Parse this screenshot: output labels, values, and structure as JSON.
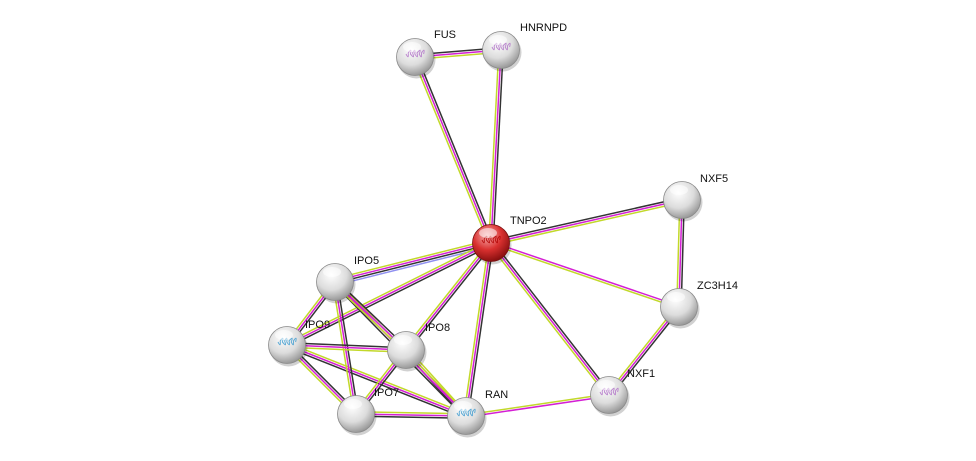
{
  "evidence_colors": {
    "textmining": "#c2d82a",
    "experiments": "#d41fd4",
    "coexpression": "#333333",
    "homology": "#8f8ff0"
  },
  "node_colors": {
    "query": "#d9302f",
    "default": "#d8d8d8"
  },
  "nodes": [
    {
      "id": "FUS",
      "label": "FUS",
      "query": false,
      "structure": true
    },
    {
      "id": "HNRNPD",
      "label": "HNRNPD",
      "query": false,
      "structure": true
    },
    {
      "id": "TNPO2",
      "label": "TNPO2",
      "query": true,
      "structure": true
    },
    {
      "id": "NXF5",
      "label": "NXF5",
      "query": false,
      "structure": false
    },
    {
      "id": "ZC3H14",
      "label": "ZC3H14",
      "query": false,
      "structure": false
    },
    {
      "id": "NXF1",
      "label": "NXF1",
      "query": false,
      "structure": true
    },
    {
      "id": "RAN",
      "label": "RAN",
      "query": false,
      "structure": true
    },
    {
      "id": "IPO7",
      "label": "IPO7",
      "query": false,
      "structure": false
    },
    {
      "id": "IPO8",
      "label": "IPO8",
      "query": false,
      "structure": false
    },
    {
      "id": "IPO9",
      "label": "IPO9",
      "query": false,
      "structure": true
    },
    {
      "id": "IPO5",
      "label": "IPO5",
      "query": false,
      "structure": false
    }
  ],
  "edges": [
    {
      "a": "FUS",
      "b": "HNRNPD",
      "evidence": [
        "coexpression",
        "experiments",
        "textmining"
      ]
    },
    {
      "a": "FUS",
      "b": "TNPO2",
      "evidence": [
        "coexpression",
        "experiments",
        "textmining"
      ]
    },
    {
      "a": "HNRNPD",
      "b": "TNPO2",
      "evidence": [
        "coexpression",
        "experiments",
        "textmining"
      ]
    },
    {
      "a": "TNPO2",
      "b": "NXF5",
      "evidence": [
        "coexpression",
        "experiments",
        "textmining"
      ]
    },
    {
      "a": "TNPO2",
      "b": "ZC3H14",
      "evidence": [
        "experiments",
        "textmining"
      ]
    },
    {
      "a": "TNPO2",
      "b": "NXF1",
      "evidence": [
        "coexpression",
        "experiments",
        "textmining"
      ]
    },
    {
      "a": "TNPO2",
      "b": "RAN",
      "evidence": [
        "coexpression",
        "experiments",
        "textmining"
      ]
    },
    {
      "a": "TNPO2",
      "b": "IPO8",
      "evidence": [
        "coexpression",
        "experiments",
        "textmining"
      ]
    },
    {
      "a": "TNPO2",
      "b": "IPO5",
      "evidence": [
        "homology",
        "coexpression",
        "experiments",
        "textmining"
      ]
    },
    {
      "a": "TNPO2",
      "b": "IPO9",
      "evidence": [
        "coexpression",
        "experiments",
        "textmining"
      ]
    },
    {
      "a": "NXF5",
      "b": "ZC3H14",
      "evidence": [
        "coexpression",
        "experiments",
        "textmining"
      ]
    },
    {
      "a": "ZC3H14",
      "b": "NXF1",
      "evidence": [
        "coexpression",
        "experiments",
        "textmining"
      ]
    },
    {
      "a": "NXF1",
      "b": "RAN",
      "evidence": [
        "experiments",
        "textmining"
      ]
    },
    {
      "a": "RAN",
      "b": "IPO7",
      "evidence": [
        "coexpression",
        "experiments",
        "textmining"
      ]
    },
    {
      "a": "RAN",
      "b": "IPO8",
      "evidence": [
        "coexpression",
        "experiments",
        "textmining"
      ]
    },
    {
      "a": "RAN",
      "b": "IPO5",
      "evidence": [
        "coexpression",
        "experiments",
        "textmining"
      ]
    },
    {
      "a": "RAN",
      "b": "IPO9",
      "evidence": [
        "coexpression",
        "experiments",
        "textmining"
      ]
    },
    {
      "a": "IPO5",
      "b": "IPO9",
      "evidence": [
        "coexpression",
        "experiments",
        "textmining"
      ]
    },
    {
      "a": "IPO5",
      "b": "IPO8",
      "evidence": [
        "coexpression",
        "experiments",
        "textmining"
      ]
    },
    {
      "a": "IPO5",
      "b": "IPO7",
      "evidence": [
        "coexpression",
        "experiments",
        "textmining"
      ]
    },
    {
      "a": "IPO9",
      "b": "IPO8",
      "evidence": [
        "coexpression",
        "experiments",
        "textmining"
      ]
    },
    {
      "a": "IPO9",
      "b": "IPO7",
      "evidence": [
        "coexpression",
        "experiments",
        "textmining"
      ]
    },
    {
      "a": "IPO8",
      "b": "IPO7",
      "evidence": [
        "coexpression",
        "experiments",
        "textmining"
      ]
    }
  ]
}
